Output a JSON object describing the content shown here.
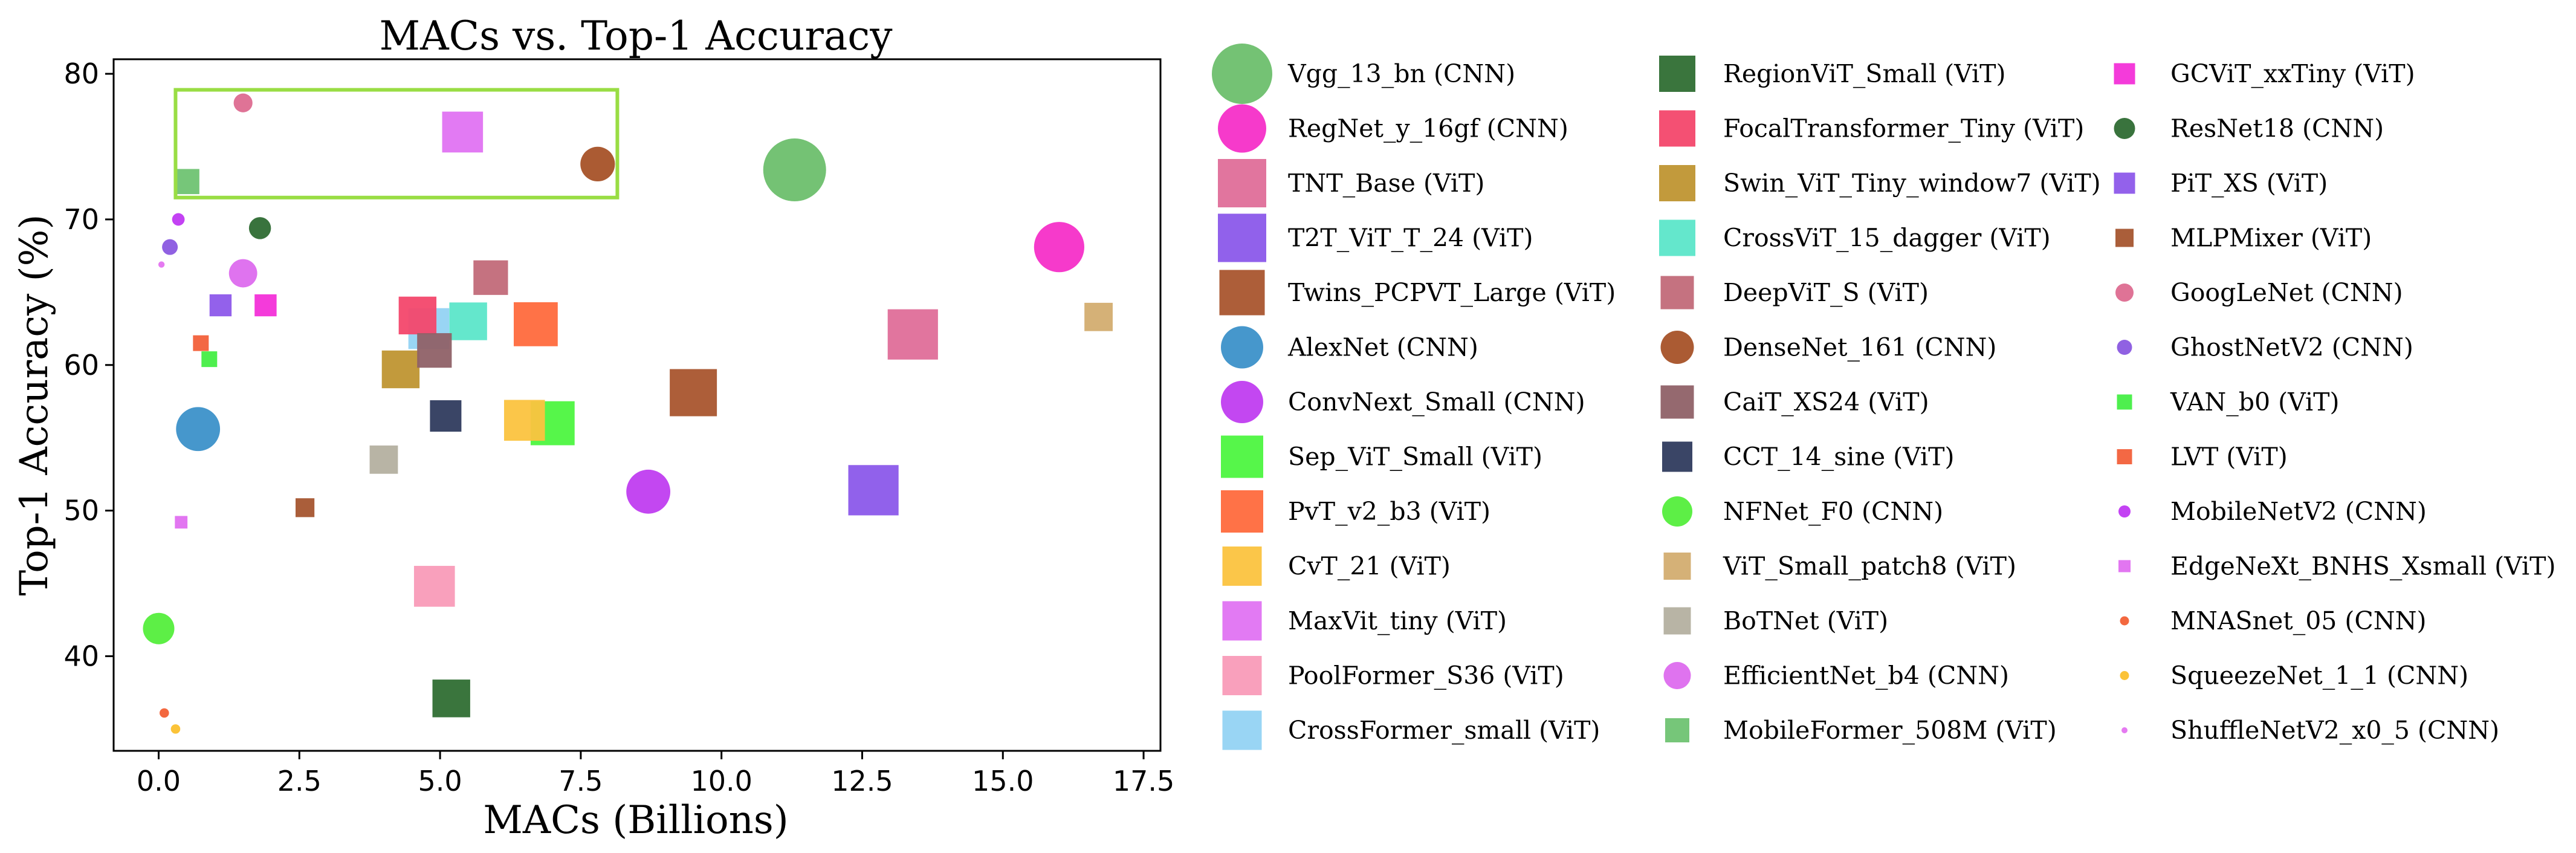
{
  "chart_data": {
    "type": "scatter",
    "title": "MACs vs. Top-1 Accuracy",
    "xlabel": "MACs (Billions)",
    "ylabel": "Top-1 Accuracy (%)",
    "xlim": [
      -0.8,
      17.8
    ],
    "ylim": [
      33.5,
      81
    ],
    "xticks": [
      0.0,
      2.5,
      5.0,
      7.5,
      10.0,
      12.5,
      15.0,
      17.5
    ],
    "xtick_labels": [
      "0.0",
      "2.5",
      "5.0",
      "7.5",
      "10.0",
      "12.5",
      "15.0",
      "17.5"
    ],
    "yticks": [
      40,
      50,
      60,
      70,
      80
    ],
    "ytick_labels": [
      "40",
      "50",
      "60",
      "70",
      "80"
    ],
    "highlight_box": {
      "x": [
        0.3,
        8.15
      ],
      "y": [
        71.5,
        78.9
      ],
      "color": "#99dd44"
    },
    "series": [
      {
        "name": "Vgg_13_bn (CNN)",
        "marker": "circle",
        "color": "#6dbf6d",
        "x": 11.3,
        "y": 73.4,
        "size": 10
      },
      {
        "name": "RegNet_y_16gf (CNN)",
        "marker": "circle",
        "color": "#f52fc8",
        "x": 16.0,
        "y": 68.1,
        "size": 8
      },
      {
        "name": "TNT_Base (ViT)",
        "marker": "square",
        "color": "#df6e99",
        "x": 13.4,
        "y": 62.1,
        "size": 8
      },
      {
        "name": "T2T_ViT_T_24 (ViT)",
        "marker": "square",
        "color": "#8b58ea",
        "x": 12.7,
        "y": 51.4,
        "size": 8
      },
      {
        "name": "Twins_PCPVT_Large (ViT)",
        "marker": "square",
        "color": "#a9552e",
        "x": 9.5,
        "y": 58.1,
        "size": 7.5
      },
      {
        "name": "AlexNet (CNN)",
        "marker": "circle",
        "color": "#3c91c9",
        "x": 0.7,
        "y": 55.6,
        "size": 7
      },
      {
        "name": "ConvNext_Small (CNN)",
        "marker": "circle",
        "color": "#c03df0",
        "x": 8.7,
        "y": 51.3,
        "size": 7
      },
      {
        "name": "Sep_ViT_Small (ViT)",
        "marker": "square",
        "color": "#4df540",
        "x": 7.0,
        "y": 56.0,
        "size": 7
      },
      {
        "name": "PvT_v2_b3 (ViT)",
        "marker": "square",
        "color": "#ff6a3d",
        "x": 6.7,
        "y": 62.8,
        "size": 7
      },
      {
        "name": "CvT_21 (ViT)",
        "marker": "square",
        "color": "#fbc33f",
        "x": 6.5,
        "y": 56.2,
        "size": 6.5
      },
      {
        "name": "MaxVit_tiny (ViT)",
        "marker": "square",
        "color": "#e073f2",
        "x": 5.4,
        "y": 76.0,
        "size": 6.5
      },
      {
        "name": "PoolFormer_S36 (ViT)",
        "marker": "square",
        "color": "#f99bb8",
        "x": 4.9,
        "y": 44.8,
        "size": 6.5
      },
      {
        "name": "CrossFormer_small (ViT)",
        "marker": "square",
        "color": "#93d3f3",
        "x": 4.8,
        "y": 62.5,
        "size": 6.5
      },
      {
        "name": "RegionViT_Small (ViT)",
        "marker": "square",
        "color": "#2f6e33",
        "x": 5.2,
        "y": 37.1,
        "size": 6
      },
      {
        "name": "FocalTransformer_Tiny (ViT)",
        "marker": "square",
        "color": "#f3476b",
        "x": 4.6,
        "y": 63.4,
        "size": 6
      },
      {
        "name": "Swin_ViT_Tiny_window7 (ViT)",
        "marker": "square",
        "color": "#bf9531",
        "x": 4.3,
        "y": 59.7,
        "size": 6
      },
      {
        "name": "CrossViT_15_dagger (ViT)",
        "marker": "square",
        "color": "#5ce6c9",
        "x": 5.5,
        "y": 63.0,
        "size": 6
      },
      {
        "name": "DeepViT_S (ViT)",
        "marker": "square",
        "color": "#c26a79",
        "x": 5.9,
        "y": 66.0,
        "size": 5.5
      },
      {
        "name": "DenseNet_161 (CNN)",
        "marker": "circle",
        "color": "#a65228",
        "x": 7.8,
        "y": 73.8,
        "size": 5.5
      },
      {
        "name": "CaiT_XS24 (ViT)",
        "marker": "square",
        "color": "#8f6167",
        "x": 4.9,
        "y": 61.0,
        "size": 5.5
      },
      {
        "name": "CCT_14_sine (ViT)",
        "marker": "square",
        "color": "#2f3b5e",
        "x": 5.1,
        "y": 56.5,
        "size": 5
      },
      {
        "name": "NFNet_F0 (CNN)",
        "marker": "circle",
        "color": "#54ee3c",
        "x": 0.0,
        "y": 41.9,
        "size": 5
      },
      {
        "name": "ViT_Small_patch8 (ViT)",
        "marker": "square",
        "color": "#d3ad70",
        "x": 16.7,
        "y": 63.3,
        "size": 4.5
      },
      {
        "name": "BoTNet (ViT)",
        "marker": "square",
        "color": "#b4b0a0",
        "x": 4.0,
        "y": 53.5,
        "size": 4.5
      },
      {
        "name": "EfficientNet_b4 (CNN)",
        "marker": "circle",
        "color": "#dd6bee",
        "x": 1.5,
        "y": 66.3,
        "size": 4.5
      },
      {
        "name": "MobileFormer_508M (ViT)",
        "marker": "square",
        "color": "#6fc372",
        "x": 0.5,
        "y": 72.6,
        "size": 4
      },
      {
        "name": "GCViT_xxTiny (ViT)",
        "marker": "square",
        "color": "#f330d8",
        "x": 1.9,
        "y": 64.1,
        "size": 3.5
      },
      {
        "name": "ResNet18 (CNN)",
        "marker": "circle",
        "color": "#2e6b33",
        "x": 1.8,
        "y": 69.4,
        "size": 3.5
      },
      {
        "name": "PiT_XS (ViT)",
        "marker": "square",
        "color": "#8d59ea",
        "x": 1.1,
        "y": 64.1,
        "size": 3.5
      },
      {
        "name": "MLPMixer (ViT)",
        "marker": "square",
        "color": "#a5552f",
        "x": 2.6,
        "y": 50.2,
        "size": 3
      },
      {
        "name": "GoogLeNet (CNN)",
        "marker": "circle",
        "color": "#dd6b90",
        "x": 1.5,
        "y": 78.0,
        "size": 3
      },
      {
        "name": "GhostNetV2 (CNN)",
        "marker": "circle",
        "color": "#8a58e0",
        "x": 0.2,
        "y": 68.1,
        "size": 2.5
      },
      {
        "name": "VAN_b0 (ViT)",
        "marker": "square",
        "color": "#44ee44",
        "x": 0.9,
        "y": 60.4,
        "size": 2.5
      },
      {
        "name": "LVT (ViT)",
        "marker": "square",
        "color": "#f2603a",
        "x": 0.75,
        "y": 61.5,
        "size": 2.5
      },
      {
        "name": "MobileNetV2 (CNN)",
        "marker": "circle",
        "color": "#c038f2",
        "x": 0.35,
        "y": 70.0,
        "size": 2
      },
      {
        "name": "EdgeNeXt_BNHS_Xsmall (ViT)",
        "marker": "square",
        "color": "#e06ff0",
        "x": 0.4,
        "y": 49.2,
        "size": 2
      },
      {
        "name": "MNASnet_05 (CNN)",
        "marker": "circle",
        "color": "#f26035",
        "x": 0.1,
        "y": 36.1,
        "size": 1.5
      },
      {
        "name": "SqueezeNet_1_1 (CNN)",
        "marker": "circle",
        "color": "#fbc02d",
        "x": 0.3,
        "y": 35.0,
        "size": 1.5
      },
      {
        "name": "ShuffleNetV2_x0_5 (CNN)",
        "marker": "circle",
        "color": "#e473f0",
        "x": 0.05,
        "y": 66.9,
        "size": 1
      }
    ]
  }
}
